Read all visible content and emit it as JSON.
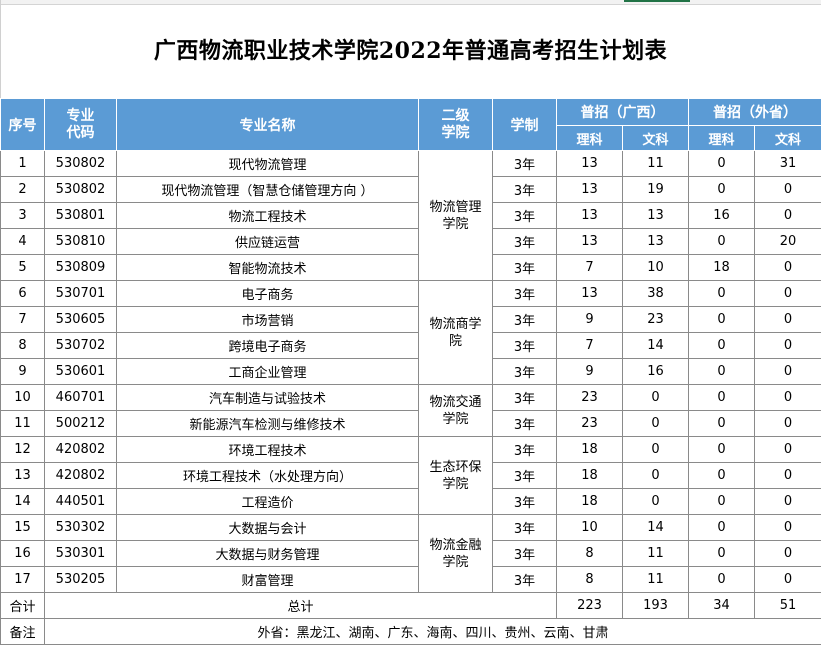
{
  "title": "广西物流职业技术学院2022年普通高考招生计划表",
  "headers": {
    "seq": "序号",
    "code_line1": "专业",
    "code_line2": "代码",
    "name": "专业名称",
    "college_line1": "二级",
    "college_line2": "学院",
    "years": "学制",
    "gx": "普招（广西）",
    "out": "普招（外省）",
    "sci": "理科",
    "art": "文科"
  },
  "colleges": [
    {
      "line1": "物流管理",
      "line2": "学院"
    },
    {
      "line1": "物流商学",
      "line2": "院"
    },
    {
      "line1": "物流交通",
      "line2": "学院"
    },
    {
      "line1": "生态环保",
      "line2": "学院"
    },
    {
      "line1": "物流金融",
      "line2": "学院"
    }
  ],
  "rows": [
    {
      "seq": "1",
      "code": "530802",
      "name": "现代物流管理",
      "years": "3年",
      "gx_sci": "13",
      "gx_art": "11",
      "out_sci": "0",
      "out_art": "31"
    },
    {
      "seq": "2",
      "code": "530802",
      "name": "现代物流管理（智慧仓储管理方向 ）",
      "years": "3年",
      "gx_sci": "13",
      "gx_art": "19",
      "out_sci": "0",
      "out_art": "0"
    },
    {
      "seq": "3",
      "code": "530801",
      "name": "物流工程技术",
      "years": "3年",
      "gx_sci": "13",
      "gx_art": "13",
      "out_sci": "16",
      "out_art": "0"
    },
    {
      "seq": "4",
      "code": "530810",
      "name": "供应链运营",
      "years": "3年",
      "gx_sci": "13",
      "gx_art": "13",
      "out_sci": "0",
      "out_art": "20"
    },
    {
      "seq": "5",
      "code": "530809",
      "name": "智能物流技术",
      "years": "3年",
      "gx_sci": "7",
      "gx_art": "10",
      "out_sci": "18",
      "out_art": "0"
    },
    {
      "seq": "6",
      "code": "530701",
      "name": "电子商务",
      "years": "3年",
      "gx_sci": "13",
      "gx_art": "38",
      "out_sci": "0",
      "out_art": "0"
    },
    {
      "seq": "7",
      "code": "530605",
      "name": "市场营销",
      "years": "3年",
      "gx_sci": "9",
      "gx_art": "23",
      "out_sci": "0",
      "out_art": "0"
    },
    {
      "seq": "8",
      "code": "530702",
      "name": "跨境电子商务",
      "years": "3年",
      "gx_sci": "7",
      "gx_art": "14",
      "out_sci": "0",
      "out_art": "0"
    },
    {
      "seq": "9",
      "code": "530601",
      "name": "工商企业管理",
      "years": "3年",
      "gx_sci": "9",
      "gx_art": "16",
      "out_sci": "0",
      "out_art": "0"
    },
    {
      "seq": "10",
      "code": "460701",
      "name": "汽车制造与试验技术",
      "years": "3年",
      "gx_sci": "23",
      "gx_art": "0",
      "out_sci": "0",
      "out_art": "0"
    },
    {
      "seq": "11",
      "code": "500212",
      "name": "新能源汽车检测与维修技术",
      "years": "3年",
      "gx_sci": "23",
      "gx_art": "0",
      "out_sci": "0",
      "out_art": "0"
    },
    {
      "seq": "12",
      "code": "420802",
      "name": "环境工程技术",
      "years": "3年",
      "gx_sci": "18",
      "gx_art": "0",
      "out_sci": "0",
      "out_art": "0"
    },
    {
      "seq": "13",
      "code": "420802",
      "name": "环境工程技术（水处理方向）",
      "years": "3年",
      "gx_sci": "18",
      "gx_art": "0",
      "out_sci": "0",
      "out_art": "0"
    },
    {
      "seq": "14",
      "code": "440501",
      "name": "工程造价",
      "years": "3年",
      "gx_sci": "18",
      "gx_art": "0",
      "out_sci": "0",
      "out_art": "0"
    },
    {
      "seq": "15",
      "code": "530302",
      "name": "大数据与会计",
      "years": "3年",
      "gx_sci": "10",
      "gx_art": "14",
      "out_sci": "0",
      "out_art": "0"
    },
    {
      "seq": "16",
      "code": "530301",
      "name": "大数据与财务管理",
      "years": "3年",
      "gx_sci": "8",
      "gx_art": "11",
      "out_sci": "0",
      "out_art": "0"
    },
    {
      "seq": "17",
      "code": "530205",
      "name": "财富管理",
      "years": "3年",
      "gx_sci": "8",
      "gx_art": "11",
      "out_sci": "0",
      "out_art": "0"
    }
  ],
  "total": {
    "label": "合计",
    "mid": "总计",
    "gx_sci": "223",
    "gx_art": "193",
    "out_sci": "34",
    "out_art": "51"
  },
  "note": {
    "label": "备注",
    "text": "外省：黑龙江、湖南、广东、海南、四川、贵州、云南、甘肃"
  }
}
